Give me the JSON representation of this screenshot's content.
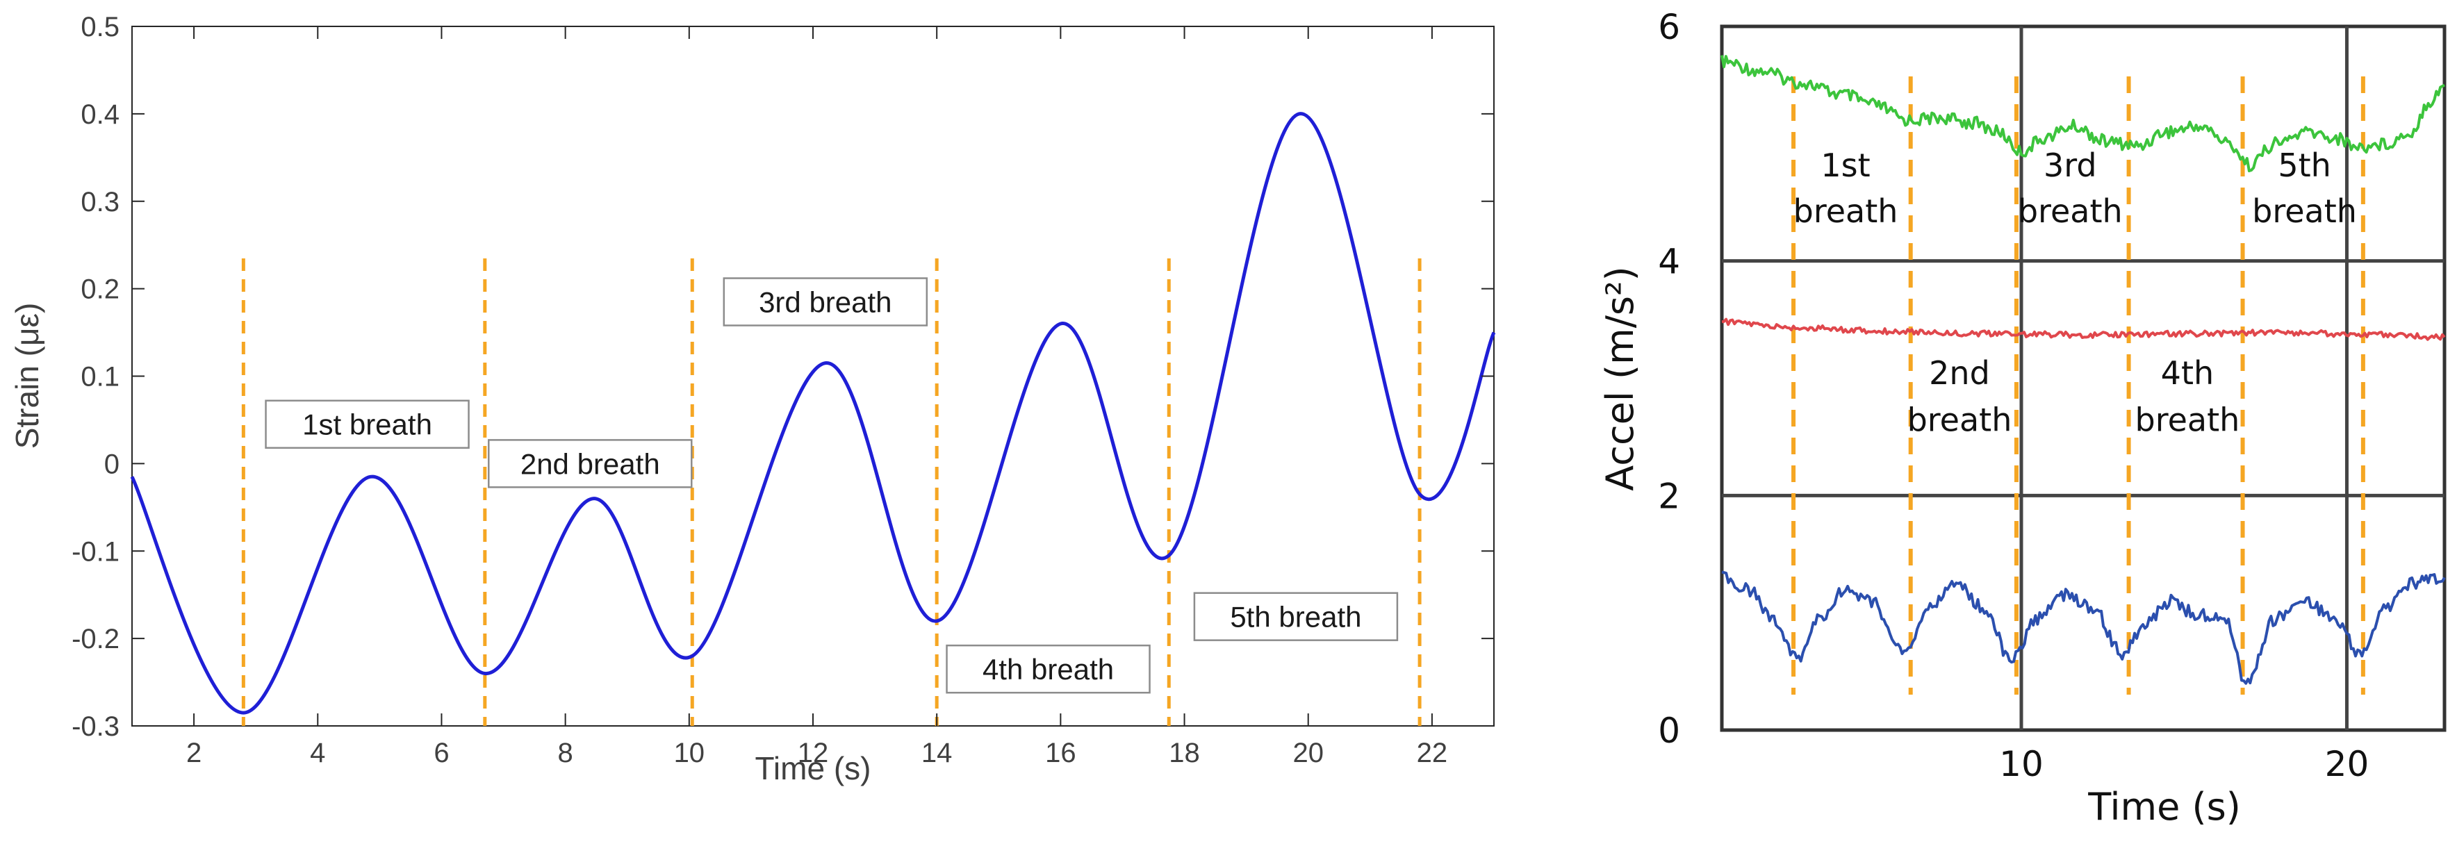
{
  "chart_data": [
    {
      "type": "line",
      "xlabel": "Time (s)",
      "ylabel": "Strain (με)",
      "xlim": [
        1,
        23
      ],
      "ylim": [
        -0.3,
        0.5
      ],
      "xticks": [
        "2",
        "4",
        "6",
        "8",
        "10",
        "12",
        "14",
        "16",
        "18",
        "20",
        "22"
      ],
      "yticks": [
        "-0.3",
        "-0.2",
        "-0.1",
        "0",
        "0.1",
        "0.2",
        "0.3",
        "0.4",
        "0.5"
      ],
      "grid": false,
      "line_color": "#1f1fd6",
      "marker_color": "#f5a623",
      "series": [
        {
          "x": [
            1.0,
            2.8,
            4.85,
            6.7,
            8.45,
            10.05,
            12.2,
            14.0,
            16.0,
            17.75,
            19.85,
            21.8,
            23.0
          ],
          "values": [
            -0.015,
            -0.285,
            -0.015,
            -0.24,
            -0.04,
            -0.22,
            0.115,
            -0.18,
            0.16,
            -0.105,
            0.4,
            -0.035,
            0.15
          ]
        }
      ],
      "breath_markers_x": [
        2.8,
        6.7,
        10.05,
        14.0,
        17.75,
        21.8
      ],
      "annotations": [
        {
          "text": "1st breath",
          "x": 4.8,
          "y": 0.045
        },
        {
          "text": "2nd breath",
          "x": 8.4,
          "y": 0.0
        },
        {
          "text": "3rd breath",
          "x": 12.2,
          "y": 0.185
        },
        {
          "text": "4th breath",
          "x": 15.8,
          "y": -0.235
        },
        {
          "text": "5th breath",
          "x": 19.8,
          "y": -0.175
        }
      ]
    },
    {
      "type": "line",
      "xlabel": "Time (s)",
      "ylabel": "Accel (m/s²)",
      "xlim": [
        0.8,
        23
      ],
      "ylim": [
        0,
        6
      ],
      "xticks": [
        "10",
        "20"
      ],
      "yticks": [
        "0",
        "2",
        "4",
        "6"
      ],
      "grid": true,
      "marker_color": "#f5a623",
      "series": [
        {
          "color": "#3cc43c",
          "x": [
            0.8,
            2.0,
            3.2,
            4.5,
            5.5,
            6.5,
            7.5,
            8.5,
            9.3,
            10.0,
            10.7,
            11.6,
            12.6,
            13.6,
            14.4,
            15.5,
            16.4,
            17.0,
            17.8,
            18.8,
            19.6,
            20.4,
            21.2,
            22.0,
            22.5,
            23.0
          ],
          "values": [
            5.7,
            5.62,
            5.52,
            5.42,
            5.33,
            5.2,
            5.22,
            5.18,
            5.1,
            4.93,
            5.05,
            5.15,
            5.02,
            4.98,
            5.1,
            5.15,
            5.0,
            4.82,
            5.0,
            5.1,
            5.05,
            4.97,
            5.0,
            5.1,
            5.35,
            5.5
          ]
        },
        {
          "color": "#e0474c",
          "x": [
            0.8,
            3.0,
            6.0,
            9.0,
            12.0,
            15.0,
            18.0,
            21.0,
            23.0
          ],
          "values": [
            3.48,
            3.43,
            3.4,
            3.38,
            3.37,
            3.38,
            3.39,
            3.37,
            3.35
          ]
        },
        {
          "color": "#2b4fae",
          "x": [
            0.8,
            1.6,
            2.4,
            3.1,
            3.8,
            4.6,
            5.4,
            6.4,
            7.2,
            8.0,
            8.8,
            9.7,
            10.5,
            11.3,
            12.2,
            13.1,
            13.8,
            14.6,
            15.4,
            16.3,
            16.9,
            17.8,
            18.7,
            19.6,
            20.4,
            21.2,
            22.0,
            23.0
          ],
          "values": [
            1.3,
            1.2,
            0.95,
            0.6,
            0.95,
            1.2,
            1.1,
            0.65,
            1.05,
            1.25,
            1.05,
            0.6,
            0.95,
            1.15,
            1.05,
            0.65,
            0.9,
            1.1,
            0.98,
            0.95,
            0.4,
            0.95,
            1.1,
            0.95,
            0.65,
            1.05,
            1.25,
            1.3
          ]
        }
      ],
      "breath_markers_x": [
        3.0,
        6.6,
        9.85,
        13.3,
        16.8,
        20.5
      ],
      "annotations": [
        {
          "text": "1st",
          "x": 4.6,
          "y": 4.72
        },
        {
          "text": "breath",
          "x": 4.6,
          "y": 4.33
        },
        {
          "text": "3rd",
          "x": 11.5,
          "y": 4.72
        },
        {
          "text": "breath",
          "x": 11.5,
          "y": 4.33
        },
        {
          "text": "5th",
          "x": 18.7,
          "y": 4.72
        },
        {
          "text": "breath",
          "x": 18.7,
          "y": 4.33
        },
        {
          "text": "2nd",
          "x": 8.1,
          "y": 2.95
        },
        {
          "text": "breath",
          "x": 8.1,
          "y": 2.55
        },
        {
          "text": "4th",
          "x": 15.1,
          "y": 2.95
        },
        {
          "text": "breath",
          "x": 15.1,
          "y": 2.55
        }
      ]
    }
  ]
}
